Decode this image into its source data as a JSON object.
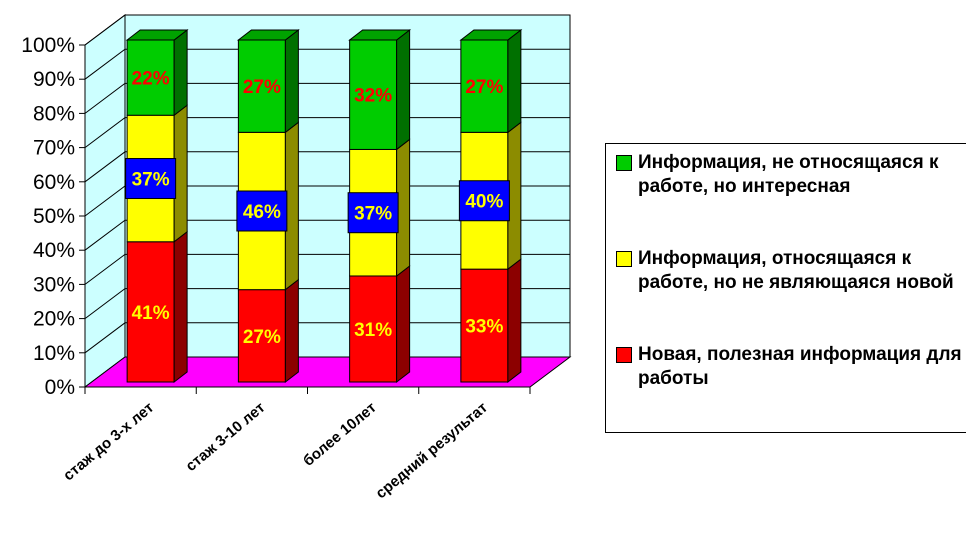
{
  "chart_data": {
    "type": "bar",
    "stacked": true,
    "percent": true,
    "three_d": true,
    "categories": [
      "стаж до 3-х лет",
      "стаж 3-10 лет",
      "более 10лет",
      "средний результат"
    ],
    "series": [
      {
        "name": "Новая, полезная информация для работы",
        "values": [
          41,
          27,
          31,
          33
        ],
        "labels": [
          "41%",
          "27%",
          "31%",
          "33%"
        ],
        "color": "#ff0000",
        "label_color": "#ffff00",
        "label_box": ""
      },
      {
        "name": "Информация, относящаяся к работе, но не являющаяся новой",
        "values": [
          37,
          46,
          37,
          40
        ],
        "labels": [
          "37%",
          "46%",
          "37%",
          "40%"
        ],
        "color": "#ffff00",
        "label_color": "#ffff00",
        "label_box": "#0000ff"
      },
      {
        "name": "Информация, не относящаяся к работе, но интересная",
        "values": [
          22,
          27,
          32,
          27
        ],
        "labels": [
          "22%",
          "27%",
          "32%",
          "27%"
        ],
        "color": "#00cc00",
        "label_color": "#ff0000",
        "label_box": ""
      }
    ],
    "y_ticks": [
      "0%",
      "10%",
      "20%",
      "30%",
      "40%",
      "50%",
      "60%",
      "70%",
      "80%",
      "90%",
      "100%"
    ],
    "ylim": [
      0,
      100
    ],
    "wall_color": "#ccffff",
    "floor_color": "#ff00ff",
    "grid": true,
    "legend_position": "right"
  },
  "legend": {
    "items": [
      {
        "label": "Информация, не относящаяся к работе, но интересная",
        "color": "#00cc00"
      },
      {
        "label": "Информация, относящаяся к работе, но не являющаяся новой",
        "color": "#ffff00"
      },
      {
        "label": "Новая, полезная информация для работы",
        "color": "#ff0000"
      }
    ]
  }
}
